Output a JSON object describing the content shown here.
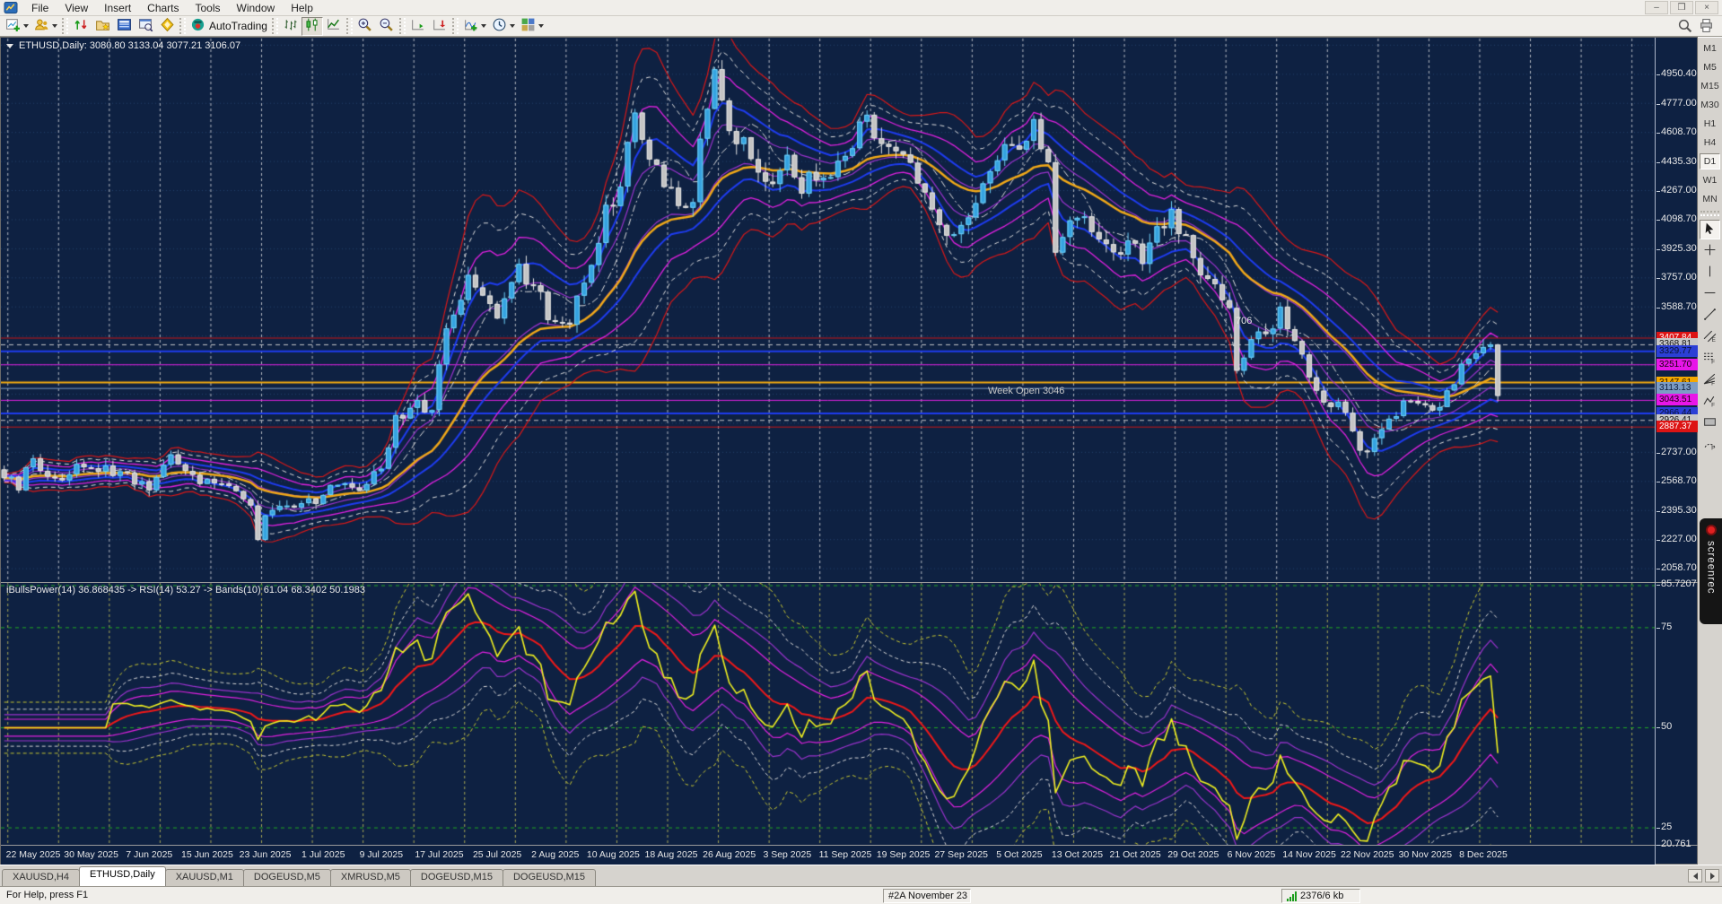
{
  "app": {
    "menu": [
      "File",
      "View",
      "Insert",
      "Charts",
      "Tools",
      "Window",
      "Help"
    ],
    "window_buttons": [
      "minimize",
      "maximize",
      "close"
    ]
  },
  "toolbar": {
    "autotrading_label": "AutoTrading",
    "groups": [
      [
        {
          "name": "new-chart",
          "dropdown": true
        },
        {
          "name": "profiles",
          "dropdown": true
        }
      ],
      [
        {
          "name": "market-watch"
        },
        {
          "name": "navigator"
        },
        {
          "name": "terminal"
        },
        {
          "name": "strategy-tester"
        },
        {
          "name": "metaeditor"
        }
      ],
      [
        {
          "name": "autotrading",
          "label": "AutoTrading"
        }
      ],
      [
        {
          "name": "bar-chart-type"
        },
        {
          "name": "candlestick-type",
          "pressed": true
        },
        {
          "name": "line-chart-type"
        }
      ],
      [
        {
          "name": "zoom-in"
        },
        {
          "name": "zoom-out"
        }
      ],
      [
        {
          "name": "auto-scroll"
        },
        {
          "name": "chart-shift"
        }
      ],
      [
        {
          "name": "indicators",
          "dropdown": true
        },
        {
          "name": "periods",
          "dropdown": true
        },
        {
          "name": "templates",
          "dropdown": true
        }
      ]
    ],
    "right_icons": [
      {
        "name": "search"
      },
      {
        "name": "print"
      }
    ]
  },
  "chart": {
    "title": "ETHUSD,Daily: 3080.80 3133.04 3077.21 3106.07",
    "symbol": "ETHUSD",
    "period": "Daily",
    "week_open_label": "Week Open 3046",
    "count_label": "706",
    "indicator_label": "iBullsPower(14) 36.868435 -> RSI(14) 53.27 -> Bands(10) 61.04  68.3402 50.1983"
  },
  "price_axis": {
    "labels": [
      {
        "t": "4950.40",
        "v": 4950.4
      },
      {
        "t": "4777.00",
        "v": 4777.0
      },
      {
        "t": "4608.70",
        "v": 4608.7
      },
      {
        "t": "4435.30",
        "v": 4435.3
      },
      {
        "t": "4267.00",
        "v": 4267.0
      },
      {
        "t": "4098.70",
        "v": 4098.7
      },
      {
        "t": "3925.30",
        "v": 3925.3
      },
      {
        "t": "3757.00",
        "v": 3757.0
      },
      {
        "t": "3588.70",
        "v": 3588.7
      },
      {
        "t": "2737.00",
        "v": 2737.0
      },
      {
        "t": "2568.70",
        "v": 2568.7
      },
      {
        "t": "2395.30",
        "v": 2395.3
      },
      {
        "t": "2227.00",
        "v": 2227.0
      },
      {
        "t": "2058.70",
        "v": 2058.7
      }
    ],
    "tags": [
      {
        "t": "3407.84",
        "v": 3407.84,
        "bg": "#dd1414",
        "fg": "#ffffff"
      },
      {
        "t": "3368.81",
        "v": 3368.81,
        "bg": "#c8c8c8",
        "fg": "#101010"
      },
      {
        "t": "3329.77",
        "v": 3329.77,
        "bg": "#2b3fd6",
        "fg": "#06122e"
      },
      {
        "t": "3251.70",
        "v": 3251.7,
        "bg": "#e816e8",
        "fg": "#14000a"
      },
      {
        "t": "3147.61",
        "v": 3147.61,
        "bg": "#f5a800",
        "fg": "#241400"
      },
      {
        "t": "3113.13",
        "v": 3113.13,
        "bg": "#7c9cc4",
        "fg": "#0c1c3a"
      },
      {
        "t": "3043.51",
        "v": 3043.51,
        "bg": "#e816e8",
        "fg": "#14000a"
      },
      {
        "t": "2966.44",
        "v": 2966.44,
        "bg": "#2b3fd6",
        "fg": "#06122e"
      },
      {
        "t": "2926.41",
        "v": 2926.41,
        "bg": "#c8c8c8",
        "fg": "#101010"
      },
      {
        "t": "2887.37",
        "v": 2887.37,
        "bg": "#dd1414",
        "fg": "#ffffff"
      }
    ]
  },
  "indicator_axis": {
    "labels": [
      {
        "t": "85.7207",
        "v": 85.7207
      },
      {
        "t": "75",
        "v": 75
      },
      {
        "t": "50",
        "v": 50
      },
      {
        "t": "25",
        "v": 25
      },
      {
        "t": "20.761",
        "v": 20.761
      }
    ]
  },
  "time_axis": {
    "labels": [
      "22 May 2025",
      "30 May 2025",
      "7 Jun 2025",
      "15 Jun 2025",
      "23 Jun 2025",
      "1 Jul 2025",
      "9 Jul 2025",
      "17 Jul 2025",
      "25 Jul 2025",
      "2 Aug 2025",
      "10 Aug 2025",
      "18 Aug 2025",
      "26 Aug 2025",
      "3 Sep 2025",
      "11 Sep 2025",
      "19 Sep 2025",
      "27 Sep 2025",
      "5 Oct 2025",
      "13 Oct 2025",
      "21 Oct 2025",
      "29 Oct 2025",
      "6 Nov 2025",
      "14 Nov 2025",
      "22 Nov 2025",
      "30 Nov 2025",
      "8 Dec 2025"
    ]
  },
  "timeframes": {
    "items": [
      "M1",
      "M5",
      "M15",
      "M30",
      "H1",
      "H4",
      "D1",
      "W1",
      "MN"
    ],
    "active": "D1"
  },
  "draw_tools": [
    {
      "name": "cursor",
      "active": true
    },
    {
      "name": "crosshair"
    },
    {
      "name": "vertical-line"
    },
    {
      "name": "horizontal-line"
    },
    {
      "name": "trendline"
    },
    {
      "name": "equidistant-channel"
    },
    {
      "name": "fibo-retracement"
    },
    {
      "name": "fibo-fan"
    },
    {
      "name": "fibo-expansion"
    },
    {
      "name": "rectangle"
    },
    {
      "name": "fibo-arcs"
    }
  ],
  "tabs": {
    "items": [
      "XAUUSD,H4",
      "ETHUSD,Daily",
      "XAUUSD,M1",
      "DOGEUSD,M5",
      "XMRUSD,M5",
      "DOGEUSD,M15",
      "DOGEUSD,M15"
    ],
    "active_index": 1
  },
  "status": {
    "help": "For Help, press F1",
    "context": "#2A November 23 20",
    "traffic": "2376/6 kb"
  },
  "screenrec_label": "screenrec",
  "chart_data": {
    "type": "candlestick",
    "symbol": "ETHUSD",
    "timeframe": "Daily",
    "title": "ETHUSD,Daily: 3080.80 3133.04 3077.21 3106.07",
    "last_ohlc": {
      "open": 3080.8,
      "high": 3133.04,
      "low": 3077.21,
      "close": 3106.07
    },
    "x_start_date": "2025-05-18",
    "x_end_date": "2025-12-10",
    "ylim_plot": [
      1980.5,
      5165.7
    ],
    "visible_price_labels": [
      4950.4,
      4777.0,
      4608.7,
      4435.3,
      4267.0,
      4098.7,
      3925.3,
      3757.0,
      3588.7,
      2737.0,
      2568.7,
      2395.3,
      2227.0,
      2058.7
    ],
    "grid_step": 170.17,
    "separator_period_days": 7,
    "close_anchors": [
      [
        -4,
        2620
      ],
      [
        -2,
        2550
      ],
      [
        0,
        2690
      ],
      [
        3,
        2570
      ],
      [
        6,
        2640
      ],
      [
        9,
        2650
      ],
      [
        12,
        2610
      ],
      [
        16,
        2520
      ],
      [
        19,
        2750
      ],
      [
        21,
        2620
      ],
      [
        24,
        2560
      ],
      [
        27,
        2540
      ],
      [
        30,
        2430
      ],
      [
        31,
        2250
      ],
      [
        33,
        2430
      ],
      [
        36,
        2450
      ],
      [
        40,
        2460
      ],
      [
        42,
        2570
      ],
      [
        45,
        2540
      ],
      [
        48,
        2630
      ],
      [
        50,
        2950
      ],
      [
        53,
        3010
      ],
      [
        55,
        2970
      ],
      [
        57,
        3470
      ],
      [
        60,
        3740
      ],
      [
        62,
        3690
      ],
      [
        64,
        3560
      ],
      [
        67,
        3790
      ],
      [
        70,
        3640
      ],
      [
        72,
        3460
      ],
      [
        74,
        3510
      ],
      [
        77,
        3890
      ],
      [
        79,
        4140
      ],
      [
        81,
        4310
      ],
      [
        83,
        4690
      ],
      [
        84,
        4560
      ],
      [
        86,
        4440
      ],
      [
        89,
        4160
      ],
      [
        91,
        4260
      ],
      [
        93,
        4790
      ],
      [
        94,
        4930
      ],
      [
        96,
        4560
      ],
      [
        98,
        4530
      ],
      [
        100,
        4420
      ],
      [
        102,
        4310
      ],
      [
        104,
        4460
      ],
      [
        106,
        4310
      ],
      [
        108,
        4330
      ],
      [
        110,
        4360
      ],
      [
        112,
        4460
      ],
      [
        114,
        4690
      ],
      [
        115,
        4650
      ],
      [
        117,
        4510
      ],
      [
        119,
        4490
      ],
      [
        121,
        4470
      ],
      [
        123,
        4210
      ],
      [
        126,
        3960
      ],
      [
        128,
        4030
      ],
      [
        130,
        4160
      ],
      [
        132,
        4360
      ],
      [
        134,
        4510
      ],
      [
        136,
        4540
      ],
      [
        138,
        4700
      ],
      [
        140,
        4390
      ],
      [
        141,
        3870
      ],
      [
        143,
        4060
      ],
      [
        145,
        4160
      ],
      [
        147,
        3960
      ],
      [
        149,
        3860
      ],
      [
        151,
        3960
      ],
      [
        153,
        3860
      ],
      [
        155,
        4010
      ],
      [
        157,
        4110
      ],
      [
        159,
        3960
      ],
      [
        161,
        3760
      ],
      [
        163,
        3710
      ],
      [
        165,
        3560
      ],
      [
        166,
        3260
      ],
      [
        168,
        3360
      ],
      [
        170,
        3460
      ],
      [
        172,
        3560
      ],
      [
        174,
        3410
      ],
      [
        176,
        3160
      ],
      [
        178,
        3060
      ],
      [
        180,
        3010
      ],
      [
        181,
        2980
      ],
      [
        183,
        2740
      ],
      [
        185,
        2810
      ],
      [
        187,
        2910
      ],
      [
        189,
        3010
      ],
      [
        191,
        3030
      ],
      [
        193,
        2960
      ],
      [
        195,
        3110
      ],
      [
        197,
        3230
      ],
      [
        199,
        3290
      ],
      [
        201,
        3350
      ],
      [
        202,
        3106
      ]
    ],
    "horizontal_lines": [
      {
        "price": 3407.84,
        "color": "#c81616",
        "width": 1,
        "style": "solid"
      },
      {
        "price": 3368.81,
        "color": "#c8c8c8",
        "width": 1,
        "style": "dash"
      },
      {
        "price": 3329.77,
        "color": "#1e3cf0",
        "width": 2,
        "style": "solid"
      },
      {
        "price": 3251.7,
        "color": "#e020e0",
        "width": 1,
        "style": "solid"
      },
      {
        "price": 3147.61,
        "color": "#f0a810",
        "width": 2,
        "style": "solid"
      },
      {
        "price": 3113.13,
        "color": "#7c9cc4",
        "width": 1,
        "style": "solid"
      },
      {
        "price": 3043.51,
        "color": "#e020e0",
        "width": 1,
        "style": "solid"
      },
      {
        "price": 2966.44,
        "color": "#1e3cf0",
        "width": 2,
        "style": "solid"
      },
      {
        "price": 2926.41,
        "color": "#c8c8c8",
        "width": 1,
        "style": "dash"
      },
      {
        "price": 2887.37,
        "color": "#c81616",
        "width": 1,
        "style": "solid"
      }
    ],
    "overlays": {
      "moving_average_color": "#f0a818",
      "band_colors": {
        "inner": "#9932cc",
        "blue": "#1e3cf0",
        "magenta": "#e020e0",
        "dashed": "#e0e0e0",
        "outer": "#d81818"
      },
      "bull_candle": "#35a3e0",
      "bear_candle": "#c4c4c4"
    },
    "indicator": {
      "name": "iBullsPower -> RSI -> Bands",
      "bulls_power_period": 14,
      "bulls_power_value": 36.868435,
      "rsi_period": 14,
      "rsi_value": 53.27,
      "bands_period": 10,
      "bands_values": [
        61.04,
        68.3402,
        50.1983
      ],
      "levels": [
        75,
        50,
        25
      ],
      "ylim": [
        20.761,
        86.17
      ],
      "line_colors": {
        "rsi": "#f0f020",
        "signal": "#f01818",
        "band_magenta": "#e020e0",
        "band_purple": "#9932cc",
        "band_white": "#d8d8d8",
        "band_yellow": "#c8c832",
        "level": "#22aa22"
      }
    }
  }
}
